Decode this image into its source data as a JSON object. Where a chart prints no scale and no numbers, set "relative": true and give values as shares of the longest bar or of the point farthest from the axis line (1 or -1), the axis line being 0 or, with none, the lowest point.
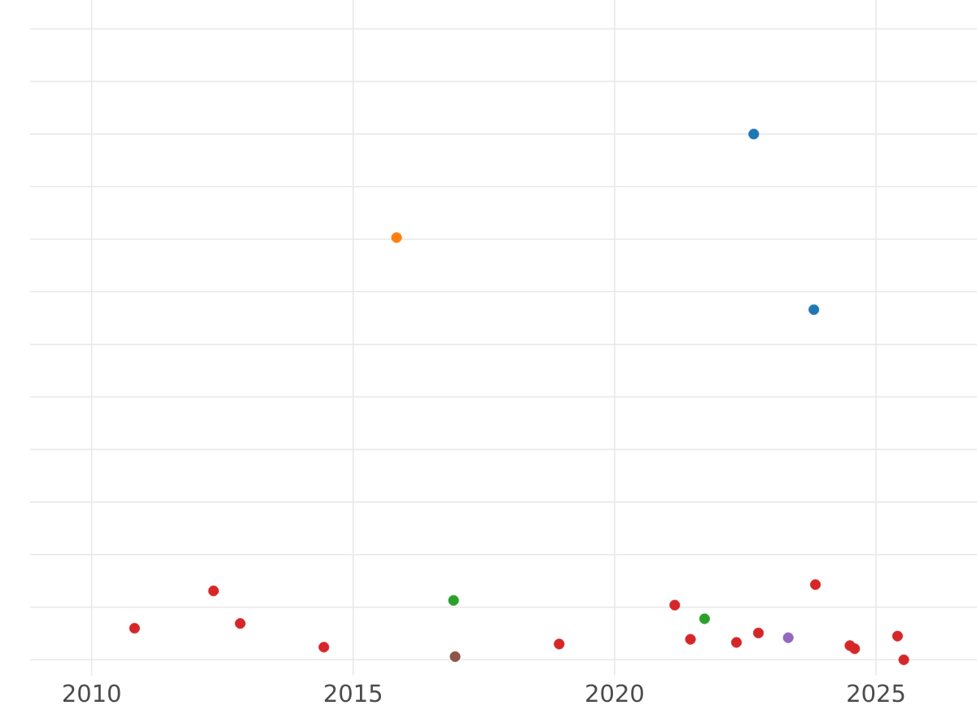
{
  "chart_data": {
    "type": "scatter",
    "relative": true,
    "tick_labels": "x",
    "grid": true,
    "marker": "circle",
    "xlim": [
      2008.82,
      2026.93
    ],
    "xticks": [
      2010,
      2015,
      2020,
      2025
    ],
    "series": [
      {
        "color": "#d62728",
        "x": [
          2010.82,
          2012.33,
          2012.84,
          2014.44,
          2018.94,
          2021.15,
          2021.45,
          2022.33,
          2022.75,
          2023.84,
          2024.5,
          2024.59,
          2025.41,
          2025.53
        ],
        "values": [
          0.06,
          0.131,
          0.069,
          0.024,
          0.03,
          0.104,
          0.039,
          0.033,
          0.051,
          0.143,
          0.027,
          0.021,
          0.045,
          0
        ]
      },
      {
        "color": "#1f77b4",
        "x": [
          2022.66,
          2023.81
        ],
        "values": [
          1,
          0.666
        ]
      },
      {
        "color": "#ff7f0e",
        "x": [
          2015.83
        ],
        "values": [
          0.803
        ]
      },
      {
        "color": "#2ca02c",
        "x": [
          2016.92,
          2021.72
        ],
        "values": [
          0.113,
          0.078
        ]
      },
      {
        "color": "#8c564b",
        "x": [
          2016.95
        ],
        "values": [
          0.006
        ]
      },
      {
        "color": "#9467bd",
        "x": [
          2023.32
        ],
        "values": [
          0.042
        ]
      }
    ]
  }
}
